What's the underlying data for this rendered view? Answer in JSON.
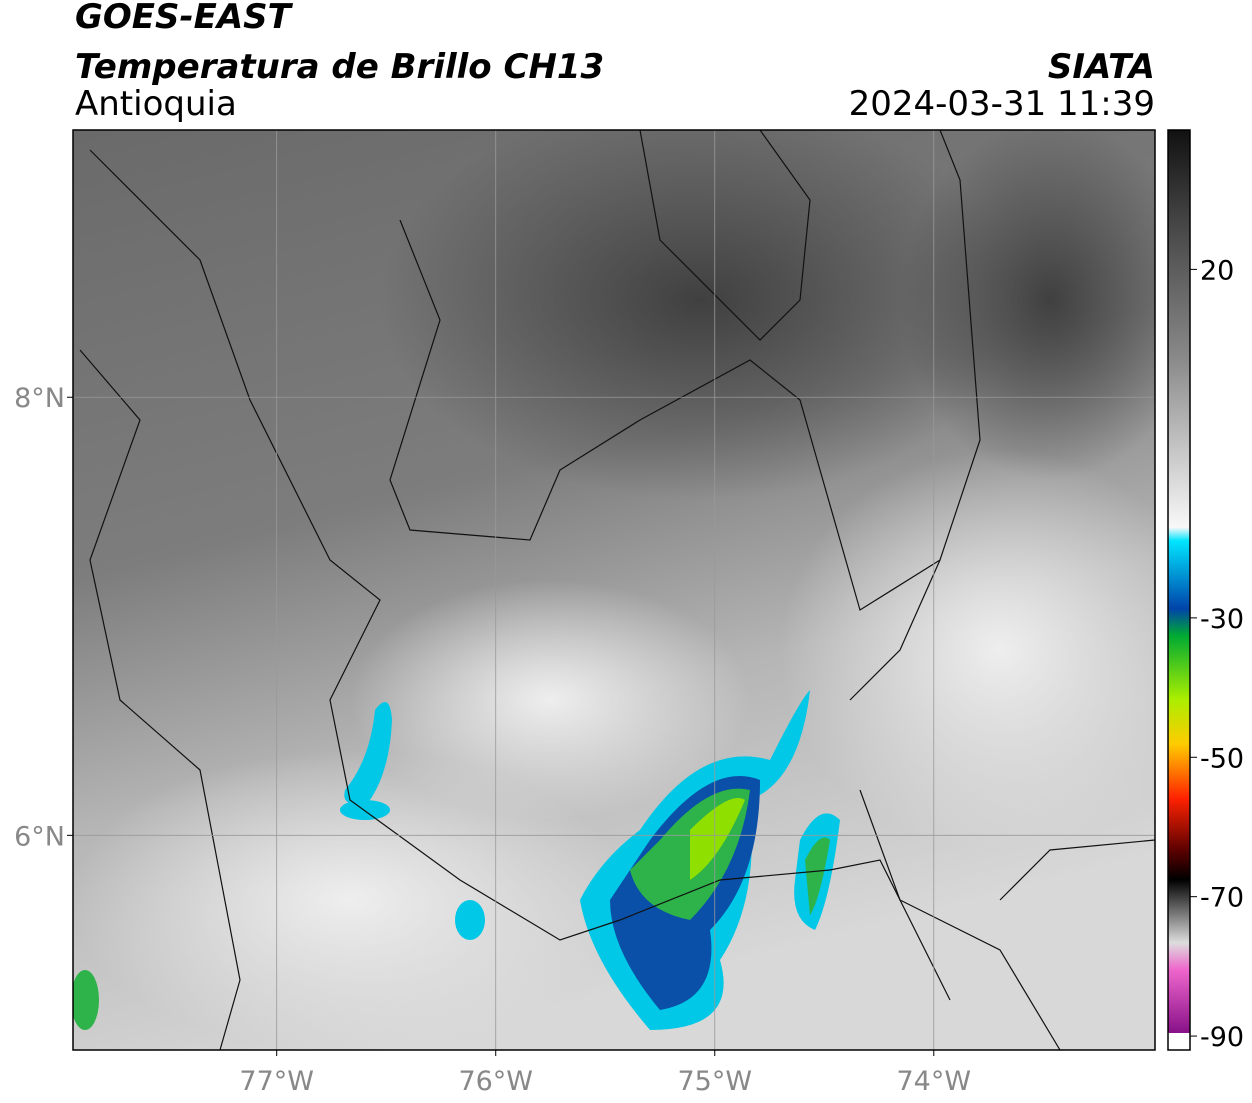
{
  "header": {
    "line1": "GOES-EAST",
    "line2": "Temperatura de Brillo CH13",
    "region": "Antioquia",
    "source": "SIATA",
    "timestamp": "2024-03-31 11:39"
  },
  "map": {
    "xlim": [
      -77.93,
      -72.99
    ],
    "ylim": [
      5.02,
      9.22
    ],
    "xticks": [
      {
        "value": -77,
        "label": "77°W"
      },
      {
        "value": -76,
        "label": "76°W"
      },
      {
        "value": -75,
        "label": "75°W"
      },
      {
        "value": -74,
        "label": "74°W"
      }
    ],
    "yticks": [
      {
        "value": 8,
        "label": "8°N"
      },
      {
        "value": 6,
        "label": "6°N"
      }
    ],
    "grid": true
  },
  "colorbar": {
    "range": [
      -92,
      40
    ],
    "ticks": [
      20,
      -30,
      -50,
      -70,
      -90
    ]
  }
}
